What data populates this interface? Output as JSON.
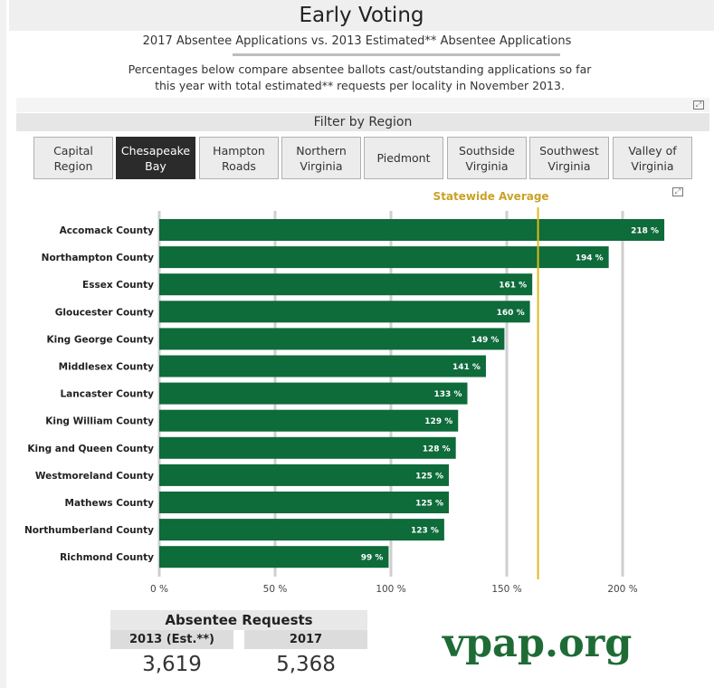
{
  "header": {
    "title": "Early Voting",
    "subtitle": "2017 Absentee Applications vs. 2013 Estimated** Absentee Applications",
    "description_line1": "Percentages below compare absentee ballots cast/outstanding applications so far",
    "description_line2": "this year with total estimated** requests per locality in November 2013."
  },
  "filter": {
    "label": "Filter by Region",
    "regions": [
      {
        "line1": "Capital",
        "line2": "Region",
        "selected": false
      },
      {
        "line1": "Chesapeake",
        "line2": "Bay",
        "selected": true
      },
      {
        "line1": "Hampton",
        "line2": "Roads",
        "selected": false
      },
      {
        "line1": "Northern",
        "line2": "Virginia",
        "selected": false
      },
      {
        "line1": "Piedmont",
        "line2": "",
        "selected": false
      },
      {
        "line1": "Southside",
        "line2": "Virginia",
        "selected": false
      },
      {
        "line1": "Southwest",
        "line2": "Virginia",
        "selected": false
      },
      {
        "line1": "Valley of",
        "line2": "Virginia",
        "selected": false
      }
    ]
  },
  "chart_data": {
    "type": "bar",
    "orientation": "horizontal",
    "categories": [
      "Accomack County",
      "Northampton County",
      "Essex County",
      "Gloucester County",
      "King George County",
      "Middlesex County",
      "Lancaster County",
      "King William County",
      "King and Queen County",
      "Westmoreland County",
      "Mathews County",
      "Northumberland County",
      "Richmond County"
    ],
    "values": [
      218,
      194,
      161,
      160,
      149,
      141,
      133,
      129,
      128,
      125,
      125,
      123,
      99
    ],
    "data_labels": [
      "218 %",
      "194 %",
      "161 %",
      "160 %",
      "149 %",
      "141 %",
      "133 %",
      "129 %",
      "128 %",
      "125 %",
      "125 %",
      "123 %",
      "99 %"
    ],
    "x_ticks": [
      0,
      50,
      100,
      150,
      200
    ],
    "x_tick_labels": [
      "0 %",
      "50 %",
      "100 %",
      "150 %",
      "200 %"
    ],
    "xlim": [
      0,
      225
    ],
    "reference_line": {
      "label": "Statewide Average",
      "value": 163.5,
      "color": "#e0b91e"
    },
    "bar_color": "#0e6b3a",
    "grid": true
  },
  "kpi": {
    "header": "Absentee Requests",
    "col1_label": "2013 (Est.**)",
    "col2_label": "2017",
    "col1_value": "3,619",
    "col2_value": "5,368"
  },
  "logo": {
    "text": "vpap.org",
    "color": "#1f6b36"
  },
  "icons": {
    "expand": "expand-icon"
  }
}
